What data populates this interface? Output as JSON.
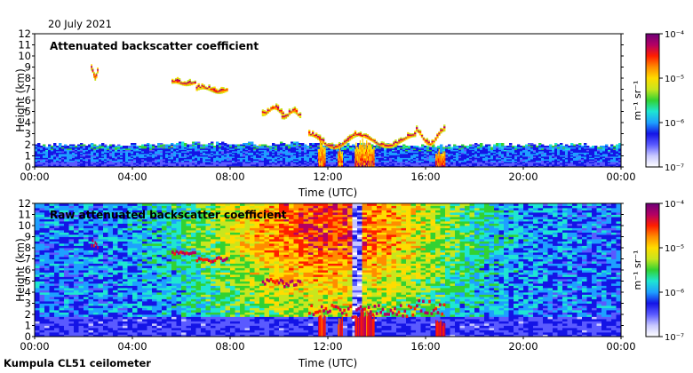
{
  "header": {
    "date": "20 July 2021"
  },
  "footer": {
    "instrument": "Kumpula CL51 ceilometer"
  },
  "colors": {
    "colormap": [
      "#ffffff",
      "#c8c8ff",
      "#5a5aff",
      "#1414e6",
      "#1ea0ff",
      "#1ee6d2",
      "#32d232",
      "#c8e61e",
      "#ffdc00",
      "#ff8c00",
      "#ff1e00",
      "#b40064",
      "#6e0078"
    ],
    "frame": "#000000",
    "background": "#ffffff"
  },
  "chart_data": [
    {
      "type": "heatmap",
      "title": "Attenuated backscatter coefficient",
      "xlabel": "Time (UTC)",
      "ylabel": "Height (km)",
      "x_range_hours": [
        0,
        24
      ],
      "x_tick_labels": [
        "00:00",
        "04:00",
        "08:00",
        "12:00",
        "16:00",
        "20:00",
        "00:00"
      ],
      "y_range_km": [
        0,
        12
      ],
      "y_tick_labels": [
        "0",
        "1",
        "2",
        "3",
        "4",
        "5",
        "6",
        "7",
        "8",
        "9",
        "10",
        "11",
        "12"
      ],
      "colorbar": {
        "label": "m⁻¹ sr⁻¹",
        "scale": "log",
        "range": [
          1e-07,
          0.0001
        ],
        "tick_labels": [
          "10⁻⁴",
          "10⁻⁵",
          "10⁻⁶",
          "10⁻⁷"
        ]
      },
      "features": {
        "boundary_layer_top_km": [
          [
            0,
            1.9
          ],
          [
            4,
            2.0
          ],
          [
            8,
            2.1
          ],
          [
            12,
            2.0
          ],
          [
            16,
            1.9
          ],
          [
            20,
            2.0
          ],
          [
            24,
            1.9
          ]
        ],
        "cloud_layers": [
          {
            "t_start_h": 2.3,
            "t_end_h": 2.6,
            "h_low_km": 7.8,
            "h_high_km": 9.3
          },
          {
            "t_start_h": 5.6,
            "t_end_h": 6.6,
            "h_low_km": 7.3,
            "h_high_km": 7.7
          },
          {
            "t_start_h": 6.6,
            "t_end_h": 7.9,
            "h_low_km": 6.6,
            "h_high_km": 7.3
          },
          {
            "t_start_h": 9.3,
            "t_end_h": 10.2,
            "h_low_km": 4.6,
            "h_high_km": 5.6
          },
          {
            "t_start_h": 10.1,
            "t_end_h": 10.9,
            "h_low_km": 4.3,
            "h_high_km": 5.3
          },
          {
            "t_start_h": 11.2,
            "t_end_h": 13.3,
            "h_low_km": 1.6,
            "h_high_km": 3.6
          },
          {
            "t_start_h": 13.3,
            "t_end_h": 15.6,
            "h_low_km": 1.7,
            "h_high_km": 3.4
          },
          {
            "t_start_h": 15.6,
            "t_end_h": 16.8,
            "h_low_km": 1.9,
            "h_high_km": 4.1
          }
        ],
        "precipitation_columns": [
          {
            "t_start_h": 11.6,
            "t_end_h": 11.9,
            "top_km": 2.4
          },
          {
            "t_start_h": 12.4,
            "t_end_h": 12.6,
            "top_km": 1.8
          },
          {
            "t_start_h": 13.1,
            "t_end_h": 13.9,
            "top_km": 2.5
          },
          {
            "t_start_h": 16.4,
            "t_end_h": 16.8,
            "top_km": 1.5
          }
        ]
      }
    },
    {
      "type": "heatmap",
      "title": "Raw attenuated backscatter coefficient",
      "xlabel": "Time (UTC)",
      "ylabel": "Height (km)",
      "x_range_hours": [
        0,
        24
      ],
      "x_tick_labels": [
        "00:00",
        "04:00",
        "08:00",
        "12:00",
        "16:00",
        "20:00",
        "00:00"
      ],
      "y_range_km": [
        0,
        12
      ],
      "y_tick_labels": [
        "0",
        "1",
        "2",
        "3",
        "4",
        "5",
        "6",
        "7",
        "8",
        "9",
        "10",
        "11",
        "12"
      ],
      "colorbar": {
        "label": "m⁻¹ sr⁻¹",
        "scale": "log",
        "range": [
          1e-07,
          0.0001
        ],
        "tick_labels": [
          "10⁻⁴",
          "10⁻⁵",
          "10⁻⁶",
          "10⁻⁷"
        ]
      },
      "features": {
        "noise_level_peak_hour": 12,
        "data_gap_hours": [
          13.0,
          13.4
        ]
      }
    }
  ]
}
